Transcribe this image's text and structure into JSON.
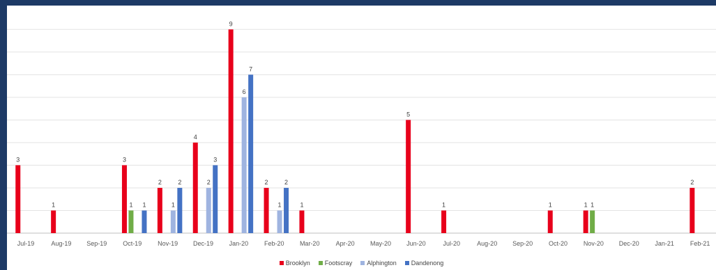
{
  "chart_data": {
    "type": "bar",
    "title": "",
    "xlabel": "",
    "ylabel": "",
    "ylim": [
      0,
      9.9
    ],
    "grid": true,
    "legend_position": "bottom",
    "categories": [
      "Jul-19",
      "Aug-19",
      "Sep-19",
      "Oct-19",
      "Nov-19",
      "Dec-19",
      "Jan-20",
      "Feb-20",
      "Mar-20",
      "Apr-20",
      "May-20",
      "Jun-20",
      "Jul-20",
      "Aug-20",
      "Sep-20",
      "Oct-20",
      "Nov-20",
      "Dec-20",
      "Jan-21",
      "Feb-21"
    ],
    "series": [
      {
        "name": "Brooklyn",
        "color": "#e8001b",
        "values": [
          3,
          1,
          null,
          3,
          2,
          4,
          9,
          2,
          1,
          null,
          null,
          5,
          1,
          null,
          null,
          1,
          1,
          null,
          null,
          2
        ]
      },
      {
        "name": "Footscray",
        "color": "#70ad47",
        "values": [
          null,
          null,
          null,
          1,
          null,
          null,
          null,
          null,
          null,
          null,
          null,
          null,
          null,
          null,
          null,
          null,
          1,
          null,
          null,
          null
        ]
      },
      {
        "name": "Alphington",
        "color": "#9fb4e0",
        "values": [
          null,
          null,
          null,
          null,
          1,
          2,
          6,
          1,
          null,
          null,
          null,
          null,
          null,
          null,
          null,
          null,
          null,
          null,
          null,
          null
        ]
      },
      {
        "name": "Dandenong",
        "color": "#4472c4",
        "values": [
          null,
          null,
          null,
          1,
          2,
          3,
          7,
          2,
          null,
          null,
          null,
          null,
          null,
          null,
          null,
          null,
          null,
          null,
          null,
          null
        ]
      }
    ]
  }
}
